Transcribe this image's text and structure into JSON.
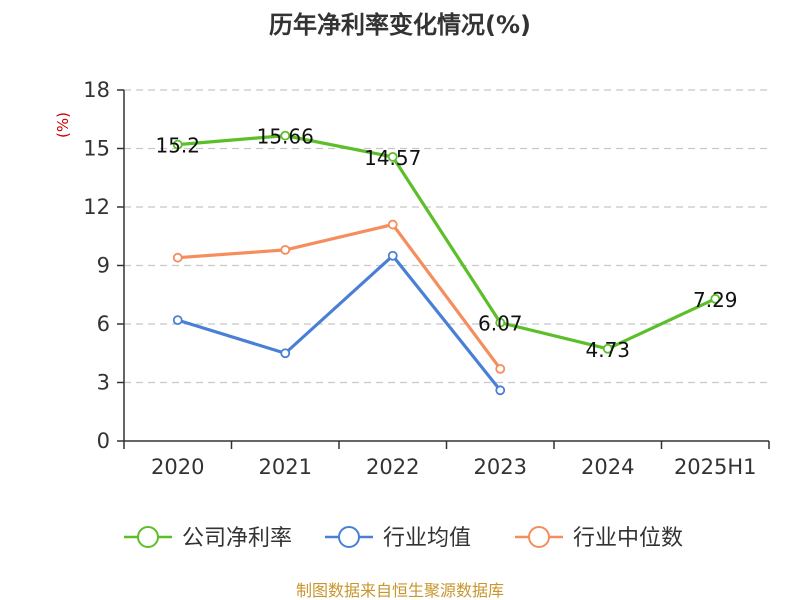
{
  "colors": {
    "company": "#5cbf2a",
    "industry_avg": "#4a7fd6",
    "industry_median": "#f68d5c"
  },
  "footer": {
    "source": "制图数据来自恒生聚源数据库"
  },
  "chart_data": {
    "type": "line",
    "title": "历年净利率变化情况(%)",
    "ylabel": "(%)",
    "xlabel": "",
    "categories": [
      "2020",
      "2021",
      "2022",
      "2023",
      "2024",
      "2025H1"
    ],
    "ylim": [
      0,
      18
    ],
    "yticks": [
      0,
      3,
      6,
      9,
      12,
      15,
      18
    ],
    "grid": true,
    "legend_position": "bottom",
    "series": [
      {
        "key": "company",
        "name": "公司净利率",
        "values": [
          15.2,
          15.66,
          14.57,
          6.07,
          4.73,
          7.29
        ],
        "labels": [
          "15.2",
          "15.66",
          "14.57",
          "6.07",
          "4.73",
          "7.29"
        ],
        "color": "#5cbf2a"
      },
      {
        "key": "avg",
        "name": "行业均值",
        "values": [
          6.2,
          4.5,
          9.5,
          2.6,
          null,
          null
        ],
        "labels": null,
        "color": "#4a7fd6"
      },
      {
        "key": "median",
        "name": "行业中位数",
        "values": [
          9.4,
          9.8,
          11.1,
          3.7,
          null,
          null
        ],
        "labels": null,
        "color": "#f68d5c"
      }
    ]
  }
}
